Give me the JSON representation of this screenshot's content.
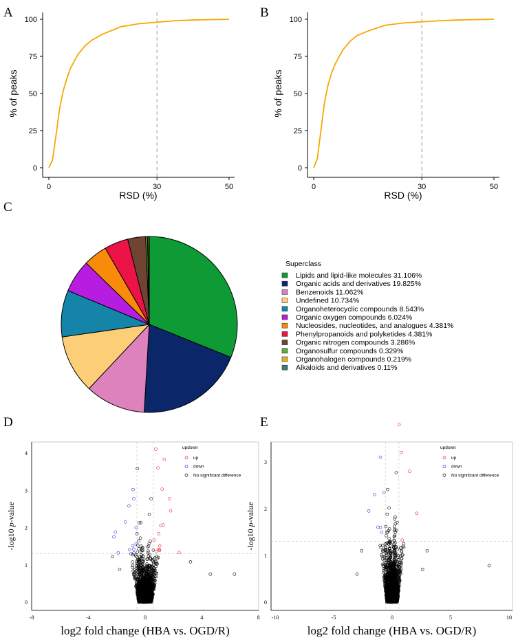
{
  "panel_labels": [
    "A",
    "B",
    "C",
    "D",
    "E"
  ],
  "chart_data": [
    {
      "type": "line",
      "panel": "A",
      "xlabel": "RSD (%)",
      "ylabel": "% of peaks",
      "xlim": [
        0,
        50
      ],
      "ylim": [
        0,
        100
      ],
      "xticks": [
        "0",
        "30",
        "50"
      ],
      "yticks": [
        "0",
        "25",
        "50",
        "75",
        "100"
      ],
      "reference_line_x": 30,
      "color": "#F5A800",
      "x": [
        0,
        1,
        2,
        3,
        4,
        5,
        6,
        8,
        10,
        12,
        15,
        18,
        20,
        25,
        30,
        35,
        40,
        50
      ],
      "y": [
        0,
        5,
        22,
        40,
        52,
        60,
        67,
        76,
        82,
        86,
        90,
        93,
        95,
        97,
        98,
        99,
        99.5,
        100
      ]
    },
    {
      "type": "line",
      "panel": "B",
      "xlabel": "RSD (%)",
      "ylabel": "% of peaks",
      "xlim": [
        0,
        50
      ],
      "ylim": [
        0,
        100
      ],
      "xticks": [
        "0",
        "30",
        "50"
      ],
      "yticks": [
        "0",
        "25",
        "50",
        "75",
        "100"
      ],
      "reference_line_x": 30,
      "color": "#F5A800",
      "x": [
        0,
        1,
        2,
        3,
        4,
        5,
        6,
        8,
        10,
        12,
        15,
        18,
        20,
        25,
        30,
        35,
        40,
        50
      ],
      "y": [
        0,
        6,
        25,
        44,
        56,
        64,
        70,
        79,
        85,
        89,
        92,
        94.5,
        96,
        97.5,
        98.3,
        99,
        99.5,
        100
      ]
    },
    {
      "type": "pie",
      "panel": "C",
      "legend_title": "Superclass",
      "legend_placement": "right",
      "slices": [
        {
          "label": "Lipids and lipid-like molecules 31.106%",
          "value": 31.106,
          "color": "#0E9B36"
        },
        {
          "label": "Organic acids and derivatives 19.825%",
          "value": 19.825,
          "color": "#0B2769"
        },
        {
          "label": "Benzenoids 11.062%",
          "value": 11.062,
          "color": "#DE82BE"
        },
        {
          "label": "Undefined 10.734%",
          "value": 10.734,
          "color": "#FCCE78"
        },
        {
          "label": "Organoheterocyclic compounds 8.543%",
          "value": 8.543,
          "color": "#1485A8"
        },
        {
          "label": "Organic oxygen compounds 6.024%",
          "value": 6.024,
          "color": "#B71DE0"
        },
        {
          "label": "Nucleosides, nucleotides, and analogues 4.381%",
          "value": 4.381,
          "color": "#F88C0A"
        },
        {
          "label": "Phenylpropanoids and polyketides 4.381%",
          "value": 4.381,
          "color": "#EC1347"
        },
        {
          "label": "Organic nitrogen compounds 3.286%",
          "value": 3.286,
          "color": "#6F4532"
        },
        {
          "label": "Organosulfur compounds 0.329%",
          "value": 0.329,
          "color": "#5DAD46"
        },
        {
          "label": "Organohalogen compounds 0.219%",
          "value": 0.219,
          "color": "#E8B020"
        },
        {
          "label": "Alkaloids and derivatives 0.11%",
          "value": 0.11,
          "color": "#3F7A80"
        }
      ]
    },
    {
      "type": "scatter",
      "panel": "D",
      "xlabel": "log2 fold change (HBA vs. OGD/R)",
      "ylabel_pre": "-log10 ",
      "ylabel_it": "p",
      "ylabel_post": "-value",
      "xlim": [
        -8,
        8
      ],
      "ylim": [
        0,
        4.2
      ],
      "xticks": [
        "-8",
        "-4",
        "0",
        "4",
        "8"
      ],
      "yticks": [
        "0",
        "1",
        "2",
        "3",
        "4"
      ],
      "thresholds": {
        "x": 0.58,
        "y": 1.3
      },
      "legend": {
        "title": "updown",
        "entries": [
          {
            "label": "up",
            "color": "#E8262B"
          },
          {
            "label": "down",
            "color": "#2B2BE0"
          },
          {
            "label": "No significant difference",
            "color": "#000000"
          }
        ]
      },
      "highlighted_points": [
        [
          0.75,
          4.1
        ],
        [
          1.35,
          3.83
        ],
        [
          -0.55,
          3.58
        ],
        [
          0.9,
          3.6
        ],
        [
          -0.85,
          3.02
        ],
        [
          1.2,
          3.03
        ],
        [
          1.8,
          2.45
        ],
        [
          -1.4,
          2.15
        ],
        [
          -2.1,
          1.88
        ],
        [
          -2.2,
          1.75
        ],
        [
          -1.9,
          1.32
        ],
        [
          2.4,
          1.33
        ],
        [
          -2.3,
          1.22
        ],
        [
          4.6,
          0.75
        ],
        [
          6.3,
          0.75
        ],
        [
          3.2,
          1.08
        ],
        [
          -1.8,
          0.88
        ]
      ],
      "n_points": 2000
    },
    {
      "type": "scatter",
      "panel": "E",
      "xlabel": "log2 fold change (HBA vs. OGD/R)",
      "ylabel_pre": "-log10 ",
      "ylabel_it": "p",
      "ylabel_post": "-value",
      "xlim": [
        -10.5,
        10.5
      ],
      "ylim": [
        0,
        3.9
      ],
      "xticks": [
        "-10",
        "-5",
        "0",
        "5",
        "10"
      ],
      "yticks": [
        "0",
        "1",
        "2",
        "3"
      ],
      "thresholds": {
        "x": 0.58,
        "y": 1.3
      },
      "legend": {
        "title": "updown",
        "entries": [
          {
            "label": "up",
            "color": "#E8262B"
          },
          {
            "label": "down",
            "color": "#2B2BE0"
          },
          {
            "label": "No significant difference",
            "color": "#000000"
          }
        ]
      },
      "highlighted_points": [
        [
          0.6,
          3.8
        ],
        [
          -1.0,
          3.1
        ],
        [
          0.8,
          3.2
        ],
        [
          1.5,
          2.8
        ],
        [
          -2.0,
          1.95
        ],
        [
          -1.5,
          2.3
        ],
        [
          2.1,
          1.9
        ],
        [
          -2.6,
          1.1
        ],
        [
          8.3,
          0.78
        ],
        [
          3.0,
          1.1
        ],
        [
          -3.0,
          0.6
        ],
        [
          2.6,
          0.7
        ]
      ],
      "n_points": 2000
    }
  ]
}
